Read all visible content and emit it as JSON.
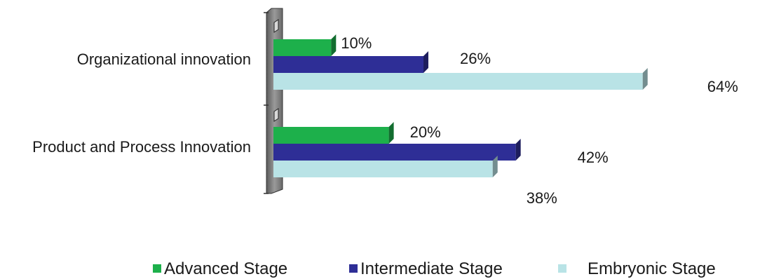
{
  "chart_data": {
    "type": "bar",
    "orientation": "horizontal",
    "style": "3d",
    "categories": [
      "Organizational innovation",
      "Product and Process Innovation"
    ],
    "series": [
      {
        "name": "Advanced Stage",
        "values": [
          10,
          20
        ],
        "color": "#1db04b"
      },
      {
        "name": "Intermediate Stage",
        "values": [
          26,
          42
        ],
        "color": "#2e2e96"
      },
      {
        "name": "Embryonic Stage",
        "values": [
          64,
          38
        ],
        "color": "#b9e3e6"
      }
    ],
    "value_suffix": "%",
    "xlim": [
      0,
      64
    ],
    "grid": false,
    "legend": "bottom"
  }
}
